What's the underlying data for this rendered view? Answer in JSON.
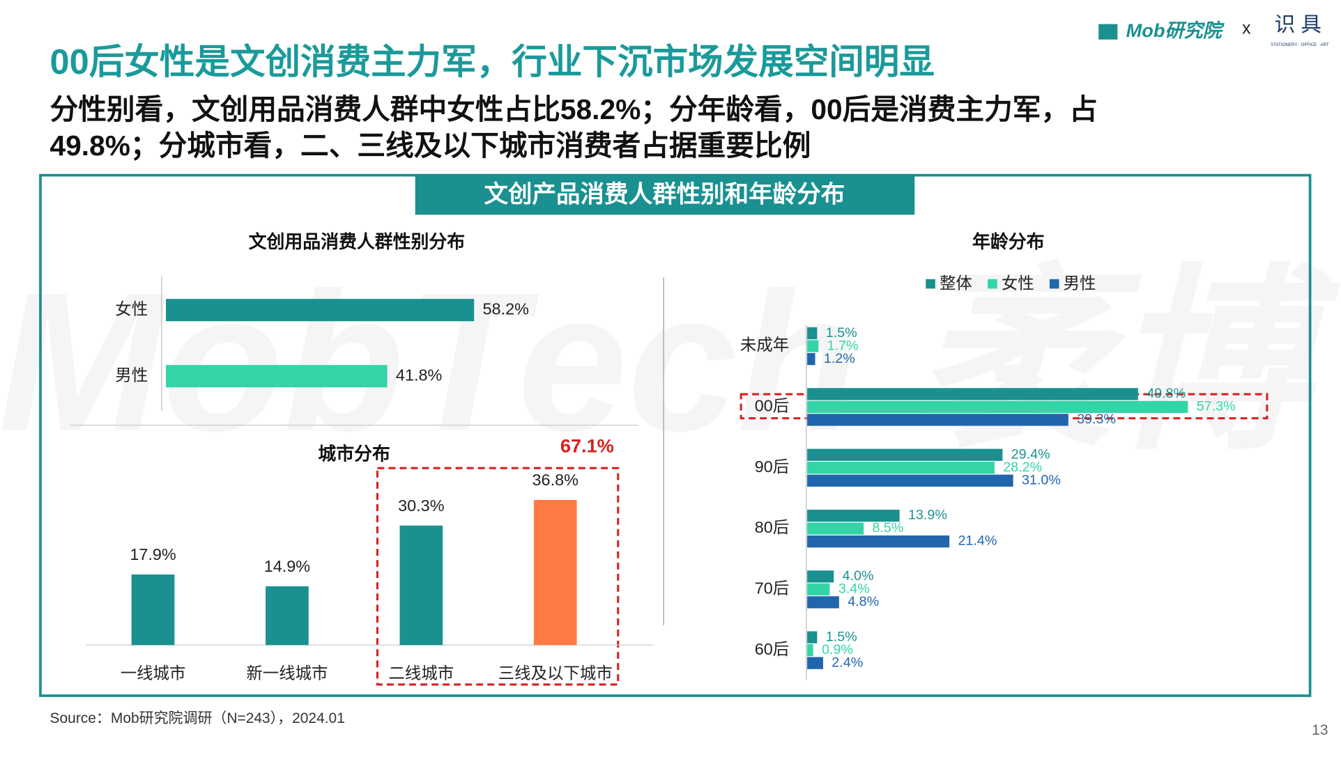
{
  "slide": {
    "logo": "Mob研究院",
    "cross": "x",
    "partner": "识 具",
    "partner_sub": "STATIONERY · OFFICE · ART",
    "title": "00后女性是文创消费主力军，行业下沉市场发展空间明显",
    "subtitle": [
      "分性别看，文创用品消费人群中女性占比58.2%；分年龄看，00后是消费主力军，占",
      "49.8%；分城市看，二、三线及以下城市消费者占据重要比例"
    ],
    "panel_title": "文创产品消费人群性别和年龄分布",
    "watermark": "MobTech 袤博",
    "source": "Source：Mob研究院调研（N=243），2024.01",
    "page": "13"
  },
  "chart_data": [
    {
      "type": "hbar",
      "title": "文创用品消费人群性别分布",
      "categories": [
        "女性",
        "男性"
      ],
      "values": [
        58.2,
        41.8
      ],
      "value_labels": [
        "58.2%",
        "41.8%"
      ],
      "colors": [
        "#1a9090",
        "#33d4a8"
      ]
    },
    {
      "type": "bar",
      "title": "城市分布",
      "categories": [
        "一线城市",
        "新一线城市",
        "二线城市",
        "三线及以下城市"
      ],
      "values": [
        17.9,
        14.9,
        30.3,
        36.8
      ],
      "value_labels": [
        "17.9%",
        "14.9%",
        "30.3%",
        "36.8%"
      ],
      "colors": [
        "#1a9090",
        "#1a9090",
        "#1a9090",
        "#ff7a45"
      ],
      "annotation": "67.1%"
    },
    {
      "type": "grouped-hbar",
      "title": "年龄分布",
      "categories": [
        "未成年",
        "00后",
        "90后",
        "80后",
        "70后",
        "60后"
      ],
      "series": [
        {
          "name": "整体",
          "color": "#1a9090",
          "values": [
            1.5,
            49.8,
            29.4,
            13.9,
            4.0,
            1.5
          ],
          "value_labels": [
            "1.5%",
            "49.8%",
            "29.4%",
            "13.9%",
            "4.0%",
            "1.5%"
          ]
        },
        {
          "name": "女性",
          "color": "#33d4a8",
          "values": [
            1.7,
            57.3,
            28.2,
            8.5,
            3.4,
            0.9
          ],
          "value_labels": [
            "1.7%",
            "57.3%",
            "28.2%",
            "8.5%",
            "3.4%",
            "0.9%"
          ]
        },
        {
          "name": "男性",
          "color": "#2166ac",
          "values": [
            1.2,
            39.3,
            31.0,
            21.4,
            4.8,
            2.4
          ],
          "value_labels": [
            "1.2%",
            "39.3%",
            "31.0%",
            "21.4%",
            "4.8%",
            "2.4%"
          ]
        }
      ]
    }
  ]
}
